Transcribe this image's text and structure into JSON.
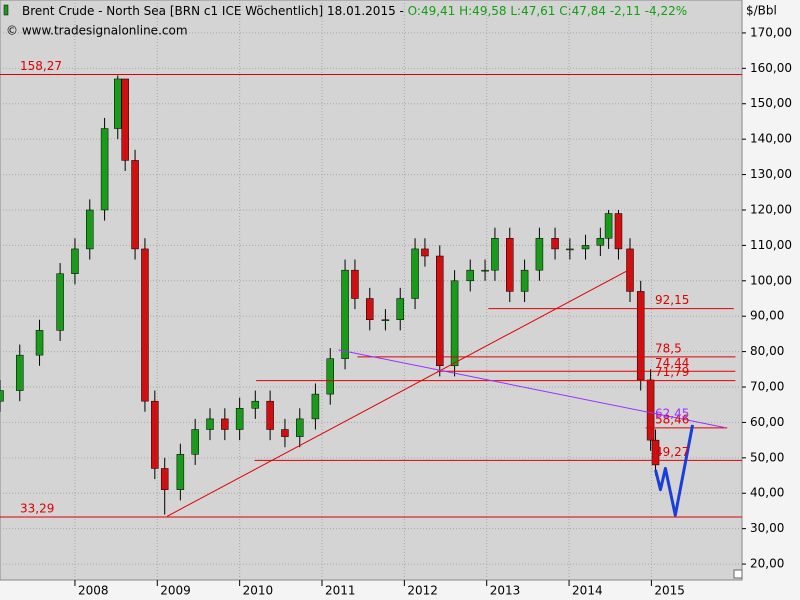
{
  "chart_data": {
    "type": "candlestick",
    "title": "Brent Crude - North Sea [BRN c1 ICE  Wöchentlich] 18.01.2015 - ",
    "quote": "O:49,41 H:49,58 L:47,61 C:47,84 -2,11 -4,22%",
    "subtitle": "© www.tradesignalonline.com",
    "y_label": "$/Bbl",
    "up_color": "#1a9a1a",
    "down_color": "#d01010",
    "quote_color": "#10a010",
    "x": [
      2007.09,
      2007.33,
      2007.57,
      2007.82,
      2008.0,
      2008.18,
      2008.36,
      2008.52,
      2008.61,
      2008.73,
      2008.85,
      2008.97,
      2009.09,
      2009.28,
      2009.46,
      2009.64,
      2009.82,
      2010.0,
      2010.19,
      2010.37,
      2010.55,
      2010.73,
      2010.92,
      2011.1,
      2011.28,
      2011.4,
      2011.58,
      2011.77,
      2011.95,
      2012.13,
      2012.25,
      2012.43,
      2012.61,
      2012.8,
      2012.98,
      2013.1,
      2013.28,
      2013.46,
      2013.64,
      2013.83,
      2014.01,
      2014.2,
      2014.38,
      2014.48,
      2014.6,
      2014.74,
      2014.87,
      2014.99,
      2015.05
    ],
    "open": [
      66,
      69,
      79,
      86,
      102,
      109,
      120,
      143,
      157,
      134,
      109,
      66,
      47,
      41,
      51,
      58,
      61,
      58,
      64,
      66,
      58,
      56,
      61,
      68,
      78,
      103,
      95,
      89,
      89,
      95,
      109,
      107,
      76,
      100,
      103,
      103,
      112,
      97,
      103,
      112,
      109,
      109,
      110,
      112,
      119,
      109,
      97,
      72,
      55
    ],
    "high": [
      72,
      82,
      89,
      105,
      112,
      123,
      146,
      158,
      157,
      137,
      112,
      69,
      50,
      54,
      61,
      64,
      64,
      67,
      69,
      69,
      61,
      64,
      71,
      81,
      106,
      106,
      98,
      92,
      98,
      112,
      112,
      110,
      103,
      106,
      106,
      115,
      115,
      106,
      115,
      115,
      112,
      113,
      115,
      120,
      120,
      112,
      100,
      75,
      58
    ],
    "low": [
      63,
      66,
      76,
      83,
      99,
      106,
      117,
      140,
      131,
      106,
      63,
      44,
      34,
      38,
      48,
      55,
      55,
      55,
      61,
      55,
      53,
      53,
      58,
      65,
      75,
      92,
      86,
      86,
      86,
      92,
      104,
      73,
      73,
      97,
      100,
      100,
      94,
      94,
      100,
      106,
      106,
      106,
      107,
      109,
      106,
      94,
      69,
      52,
      45
    ],
    "close": [
      69,
      79,
      86,
      102,
      109,
      120,
      143,
      157,
      134,
      109,
      66,
      47,
      41,
      51,
      58,
      61,
      58,
      64,
      66,
      58,
      56,
      61,
      68,
      78,
      103,
      95,
      89,
      89,
      95,
      109,
      107,
      76,
      100,
      103,
      103,
      112,
      97,
      103,
      112,
      109,
      109,
      110,
      112,
      119,
      109,
      97,
      72,
      55,
      48
    ],
    "xlim": [
      2007.09,
      2016.1
    ],
    "xticks": [
      2008,
      2009,
      2010,
      2011,
      2012,
      2013,
      2014,
      2015
    ],
    "ylim": [
      15.5,
      179.3
    ],
    "yticks": [
      {
        "value": 20,
        "label": "20,00"
      },
      {
        "value": 30,
        "label": "30,00"
      },
      {
        "value": 40,
        "label": "40,00"
      },
      {
        "value": 50,
        "label": "50,00"
      },
      {
        "value": 60,
        "label": "60,00"
      },
      {
        "value": 70,
        "label": "70,00"
      },
      {
        "value": 80,
        "label": "80,00"
      },
      {
        "value": 90,
        "label": "90,00"
      },
      {
        "value": 100,
        "label": "100,00"
      },
      {
        "value": 110,
        "label": "110,00"
      },
      {
        "value": 120,
        "label": "120,00"
      },
      {
        "value": 130,
        "label": "130,00"
      },
      {
        "value": 140,
        "label": "140,00"
      },
      {
        "value": 150,
        "label": "150,00"
      },
      {
        "value": 160,
        "label": "160,00"
      },
      {
        "value": 170,
        "label": "170,00"
      }
    ],
    "grid": true,
    "level_color": "#e00000",
    "levels": [
      {
        "value": 158.27,
        "label": "158,27",
        "from": 2007.09,
        "to": 2016.1
      },
      {
        "value": 92.15,
        "label": "92,15",
        "from": 2013.02,
        "to": 2016.0
      },
      {
        "value": 78.5,
        "label": "78,5",
        "from": 2011.43,
        "to": 2016.02
      },
      {
        "value": 74.44,
        "label": "74,44",
        "from": 2012.4,
        "to": 2016.02
      },
      {
        "value": 71.79,
        "label": "71,79",
        "from": 2010.2,
        "to": 2016.02
      },
      {
        "value": 58.46,
        "label": "58,46",
        "from": 2014.93,
        "to": 2015.92
      },
      {
        "value": 49.27,
        "label": "49,27",
        "from": 2010.18,
        "to": 2016.1
      },
      {
        "value": 33.29,
        "label": "33,29",
        "from": 2007.09,
        "to": 2016.1
      }
    ],
    "trendlines": [
      {
        "color": "#e00000",
        "width": 1,
        "x": [
          2009.12,
          2014.72
        ],
        "y": [
          33.5,
          103
        ]
      },
      {
        "color": "#9b30ff",
        "width": 1,
        "x": [
          2011.2,
          2015.88
        ],
        "y": [
          80.5,
          58.6
        ],
        "tag": {
          "value": 62.45,
          "label": "62,45"
        }
      },
      {
        "color": "#1a3fd8",
        "width": 3,
        "x": [
          2015.05,
          2015.11,
          2015.17,
          2015.29,
          2015.5
        ],
        "y": [
          46.6,
          41,
          47,
          33.8,
          59.3
        ]
      }
    ]
  }
}
